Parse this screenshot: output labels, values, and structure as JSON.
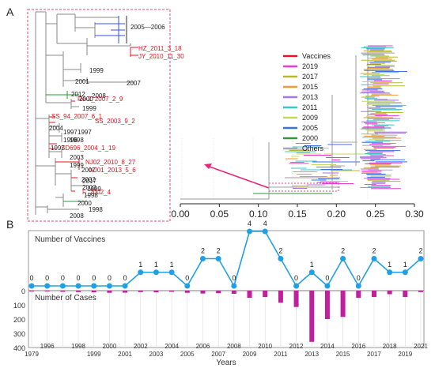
{
  "panel_a": {
    "label": "A",
    "inset_labels": {
      "clade_range": "2005—2006",
      "vaccine_strains": [
        "HZ_2011_3_18",
        "JY_2010_11_30",
        "Re-2_2007_2_9",
        "SS_94_2007_6_1",
        "SS_2003_9_2",
        "SD696_2004_1_19",
        "NJ02_2010_8_27",
        "NJ01_2013_5_6",
        "F_2002_4"
      ],
      "years": [
        "1999",
        "2001",
        "2007",
        "2012",
        "2008",
        "2000",
        "1999",
        "2004",
        "1997",
        "1997",
        "1996",
        "1998",
        "1997",
        "2003",
        "1999",
        "2007",
        "2002",
        "2017",
        "2003",
        "1999",
        "1998",
        "2000",
        "1998",
        "2008"
      ]
    },
    "legend": [
      {
        "label": "Vaccines",
        "color": "#e8141c"
      },
      {
        "label": "2019",
        "color": "#ee38d6"
      },
      {
        "label": "2017",
        "color": "#b8b82e"
      },
      {
        "label": "2015",
        "color": "#ee9a3a"
      },
      {
        "label": "2013",
        "color": "#a576e0"
      },
      {
        "label": "2011",
        "color": "#38c8c8"
      },
      {
        "label": "2009",
        "color": "#c0d862"
      },
      {
        "label": "2005",
        "color": "#3a70e8"
      },
      {
        "label": "2000",
        "color": "#2e9a36"
      },
      {
        "label": "Others",
        "color": "#a8a8a8"
      }
    ],
    "axis_ticks": [
      "0.00",
      "0.05",
      "0.10",
      "0.15",
      "0.20",
      "0.25",
      "0.30"
    ]
  },
  "chart_data": {
    "type": "line",
    "panel_label": "B",
    "x": [
      "1979",
      "1996",
      "1997",
      "1998",
      "1999",
      "2000",
      "2001",
      "2002",
      "2003",
      "2004",
      "2005",
      "2006",
      "2007",
      "2008",
      "2009",
      "2010",
      "2011",
      "2012",
      "2013",
      "2014",
      "2015",
      "2016",
      "2017",
      "2018",
      "2019",
      "2021"
    ],
    "series": [
      {
        "name": "Number of Vaccines",
        "values": [
          0,
          0,
          0,
          0,
          0,
          0,
          0,
          1,
          1,
          1,
          0,
          2,
          2,
          0,
          4,
          4,
          2,
          0,
          1,
          0,
          2,
          0,
          2,
          1,
          1,
          2
        ],
        "color": "#1fa0e6"
      },
      {
        "name": "Number of Cases",
        "values": [
          5,
          5,
          8,
          10,
          12,
          15,
          14,
          10,
          12,
          8,
          15,
          20,
          18,
          22,
          50,
          45,
          85,
          115,
          360,
          200,
          185,
          50,
          45,
          25,
          45,
          10
        ],
        "color": "#c0209c"
      }
    ],
    "bottom_ticks": [
      "1979",
      "1999",
      "2001",
      "2003",
      "2005",
      "2007",
      "2009",
      "2011",
      "2013",
      "2015",
      "2017",
      "2019"
    ],
    "top_ticks": [
      "1996",
      "1998",
      "2000",
      "2002",
      "2004",
      "2006",
      "2008",
      "2010",
      "2012",
      "2014",
      "2016",
      "2018",
      "2021"
    ],
    "cases_axis_ticks": [
      "0",
      "100",
      "200",
      "300",
      "400"
    ],
    "cases_max": 400,
    "vaccines_max": 4,
    "xlabel": "Years",
    "vaccine_axis_label": "Number of Vaccines",
    "cases_axis_label": "Number of Cases"
  }
}
